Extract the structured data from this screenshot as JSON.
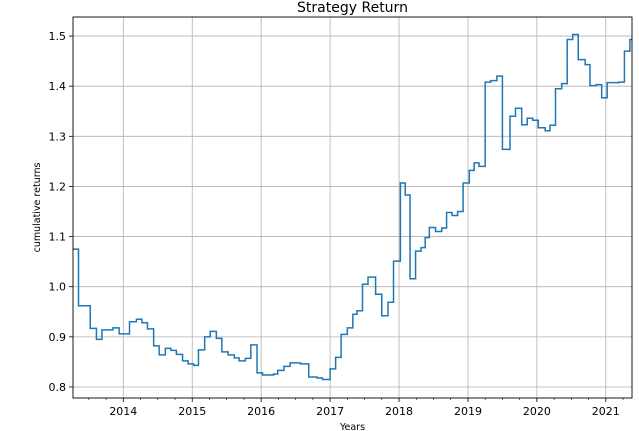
{
  "chart_data": {
    "type": "line",
    "drawstyle": "steps-post",
    "title": "Strategy Return",
    "xlabel": "Years",
    "ylabel": "cumulative returns",
    "xlim": [
      2013.27,
      2021.38
    ],
    "ylim": [
      0.778,
      1.538
    ],
    "grid": true,
    "x_ticks": [
      2014,
      2015,
      2016,
      2017,
      2018,
      2019,
      2020,
      2021
    ],
    "x_tick_labels": [
      "2014",
      "2015",
      "2016",
      "2017",
      "2018",
      "2019",
      "2020",
      "2021"
    ],
    "y_ticks": [
      0.8,
      0.9,
      1.0,
      1.1,
      1.2,
      1.3,
      1.4,
      1.5
    ],
    "y_tick_labels": [
      "0.8",
      "0.9",
      "1.0",
      "1.1",
      "1.2",
      "1.3",
      "1.4",
      "1.5"
    ],
    "colors": {
      "series": "#1f77b4"
    },
    "series": [
      {
        "x": [
          2013.27,
          2013.35,
          2013.52,
          2013.61,
          2013.69,
          2013.85,
          2013.94,
          2014.09,
          2014.19,
          2014.27,
          2014.35,
          2014.44,
          2014.52,
          2014.61,
          2014.69,
          2014.77,
          2014.86,
          2014.94,
          2015.02,
          2015.09,
          2015.18,
          2015.26,
          2015.35,
          2015.43,
          2015.52,
          2015.61,
          2015.68,
          2015.77,
          2015.85,
          2015.94,
          2016.02,
          2016.18,
          2016.24,
          2016.33,
          2016.42,
          2016.57,
          2016.69,
          2016.81,
          2016.89,
          2017.0,
          2017.08,
          2017.16,
          2017.25,
          2017.33,
          2017.39,
          2017.47,
          2017.55,
          2017.66,
          2017.75,
          2017.84,
          2017.92,
          2018.02,
          2018.09,
          2018.16,
          2018.24,
          2018.32,
          2018.38,
          2018.44,
          2018.53,
          2018.62,
          2018.69,
          2018.77,
          2018.85,
          2018.93,
          2019.02,
          2019.09,
          2019.16,
          2019.25,
          2019.33,
          2019.42,
          2019.5,
          2019.61,
          2019.69,
          2019.78,
          2019.86,
          2019.94,
          2020.02,
          2020.12,
          2020.19,
          2020.27,
          2020.36,
          2020.44,
          2020.52,
          2020.6,
          2020.7,
          2020.77,
          2020.86,
          2020.94,
          2021.02,
          2021.19,
          2021.27,
          2021.35
        ],
        "y": [
          1.075,
          0.962,
          0.917,
          0.895,
          0.914,
          0.918,
          0.906,
          0.93,
          0.935,
          0.928,
          0.916,
          0.882,
          0.864,
          0.877,
          0.873,
          0.865,
          0.852,
          0.846,
          0.843,
          0.874,
          0.9,
          0.911,
          0.897,
          0.87,
          0.864,
          0.858,
          0.852,
          0.857,
          0.884,
          0.828,
          0.824,
          0.826,
          0.833,
          0.841,
          0.848,
          0.846,
          0.82,
          0.818,
          0.815,
          0.836,
          0.859,
          0.905,
          0.918,
          0.945,
          0.952,
          1.005,
          1.019,
          0.985,
          0.942,
          0.969,
          1.051,
          1.207,
          1.183,
          1.016,
          1.071,
          1.078,
          1.098,
          1.118,
          1.11,
          1.117,
          1.148,
          1.142,
          1.15,
          1.207,
          1.232,
          1.247,
          1.24,
          1.408,
          1.411,
          1.42,
          1.274,
          1.34,
          1.356,
          1.323,
          1.336,
          1.332,
          1.317,
          1.311,
          1.322,
          1.395,
          1.405,
          1.493,
          1.503,
          1.453,
          1.443,
          1.401,
          1.403,
          1.377,
          1.407,
          1.408,
          1.47,
          1.493
        ]
      }
    ]
  }
}
